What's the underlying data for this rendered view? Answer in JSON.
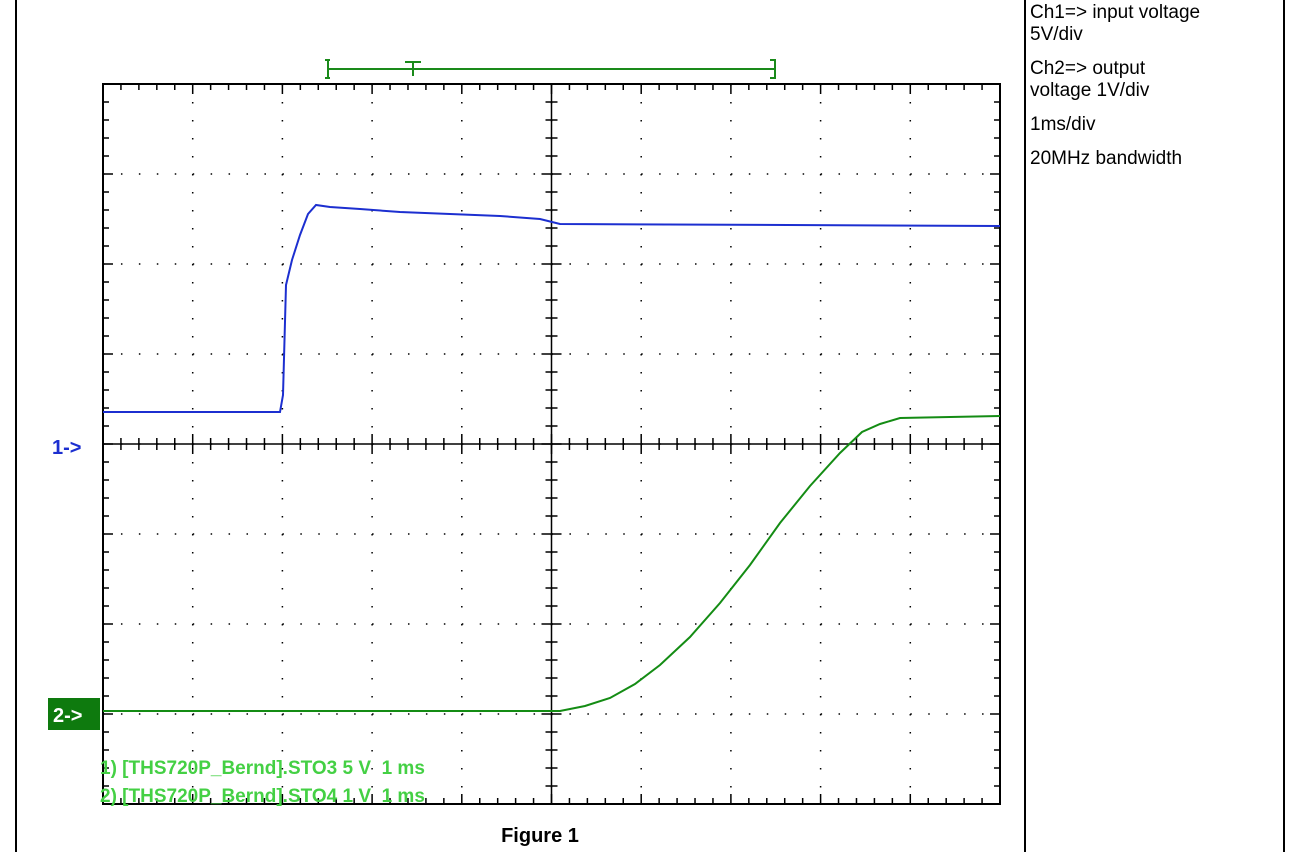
{
  "scope": {
    "ch1_marker": "1->",
    "ch2_marker": "2->",
    "readouts": [
      "1) [THS720P_Bernd].STO3 5 V  1 ms",
      "2) [THS720P_Bernd].STO4 1 V  1 ms"
    ]
  },
  "caption": "Figure 1",
  "notes": [
    "Ch1=> input voltage 5V/div",
    "Ch2=> output voltage 1V/div",
    "1ms/div",
    "20MHz bandwidth"
  ]
}
